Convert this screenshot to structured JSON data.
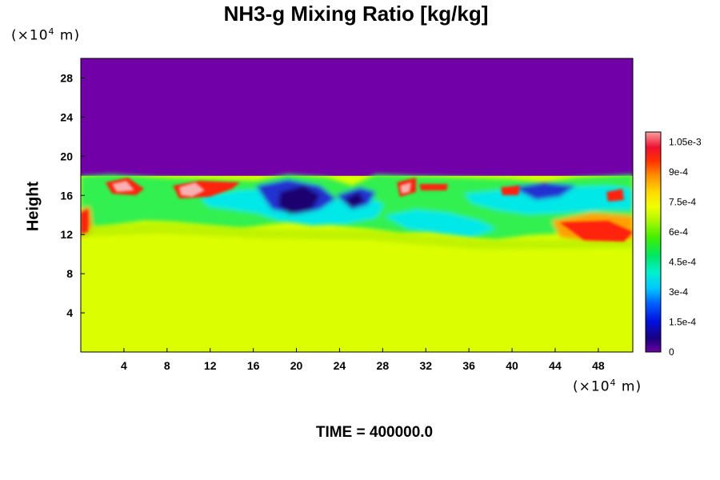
{
  "chart_data": {
    "type": "heatmap",
    "title": "NH3-g Mixing Ratio [kg/kg]",
    "ylabel": "Height",
    "x_unit": "(×10",
    "x_unit_exp": "4",
    "x_unit_tail": " m)",
    "y_unit": "(×10",
    "y_unit_exp": "4",
    "y_unit_tail": " m)",
    "xlim": [
      0,
      51.2
    ],
    "ylim": [
      0,
      30
    ],
    "x_ticks": [
      4,
      8,
      12,
      16,
      20,
      24,
      28,
      32,
      36,
      40,
      44,
      48
    ],
    "y_ticks": [
      4,
      8,
      12,
      16,
      20,
      24,
      28
    ],
    "colorbar": {
      "range": [
        0,
        0.0011
      ],
      "labels": [
        "0",
        "1.5e-4",
        "3e-4",
        "4.5e-4",
        "6e-4",
        "7.5e-4",
        "9e-4",
        "1.05e-3"
      ],
      "label_values": [
        0,
        0.00015,
        0.0003,
        0.00045,
        0.0006,
        0.00075,
        0.0009,
        0.00105
      ]
    },
    "colors": {
      "upper_layer": "#7200a8",
      "lower_layer": "#dcff00",
      "mixing_cyan": "#00e8e8",
      "mixing_green": "#30f050",
      "mixing_blue": "#2030d0",
      "dark_blue": "#1a0070",
      "high_red": "#ff2010",
      "peak_pink": "#f8b0b0"
    },
    "layer_boundary_height": 18,
    "uniform_lower_value": 0.00078
  },
  "footer": {
    "time_label": "TIME = 400000.0"
  }
}
